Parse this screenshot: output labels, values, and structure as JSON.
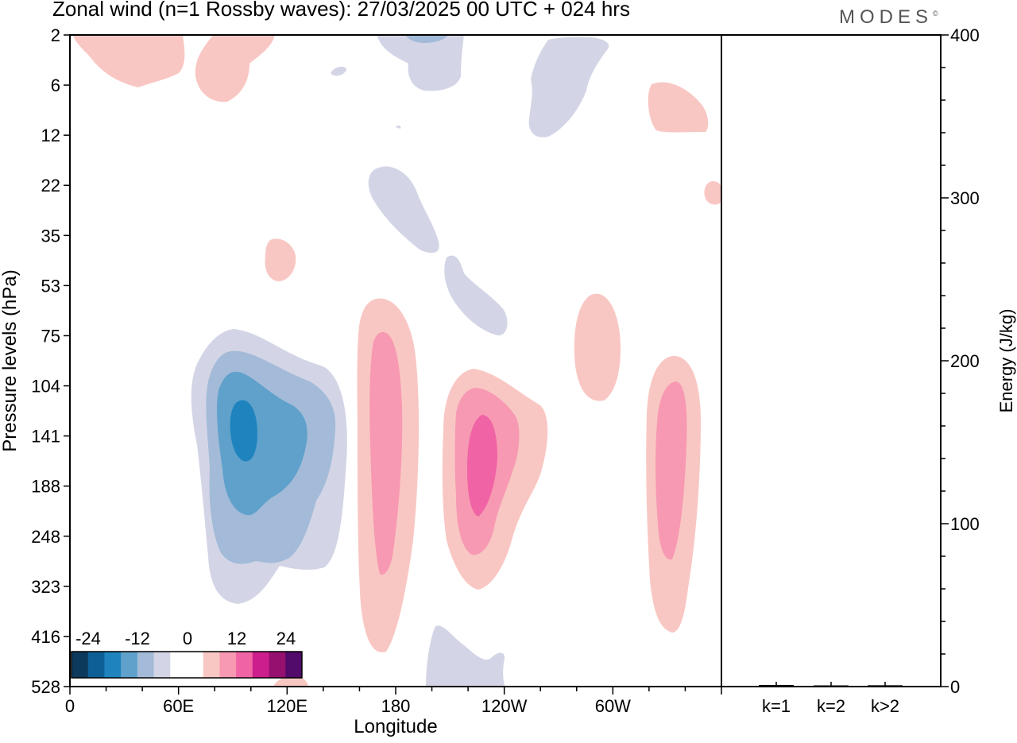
{
  "title": "Zonal wind (n=1 Rossby waves):  27/03/2025  00 UTC  + 024 hrs",
  "brand": "MODES",
  "chart_data": [
    {
      "type": "heatmap",
      "title": "Zonal wind (n=1 Rossby waves):  27/03/2025  00 UTC  + 024 hrs",
      "xlabel": "Longitude",
      "ylabel": "Pressure levels (hPa)",
      "x_ticks": [
        {
          "lon": 0,
          "label": "0"
        },
        {
          "lon": 60,
          "label": "60E"
        },
        {
          "lon": 120,
          "label": "120E"
        },
        {
          "lon": 180,
          "label": "180"
        },
        {
          "lon": 240,
          "label": "120W"
        },
        {
          "lon": 300,
          "label": "60W"
        }
      ],
      "xlim": [
        0,
        360
      ],
      "y_levels": [
        "2",
        "6",
        "12",
        "22",
        "35",
        "53",
        "75",
        "104",
        "141",
        "188",
        "248",
        "323",
        "416",
        "528"
      ],
      "colorbar": {
        "labels": [
          "-24",
          "-12",
          "0",
          "12",
          "24"
        ],
        "colors": [
          "#0d3a5c",
          "#0e5f95",
          "#1f84bd",
          "#5fa1cb",
          "#a3bbd8",
          "#d3d5e6",
          "#ffffff",
          "#ffffff",
          "#f9c7c3",
          "#f799b2",
          "#f063a4",
          "#cc1e8c",
          "#96106f",
          "#520a6b"
        ]
      },
      "features": [
        {
          "sign": "negative",
          "peak": -12,
          "lon": 101,
          "level_index": 8.5
        },
        {
          "sign": "positive",
          "peak": 8,
          "lon": 174,
          "level_index": 8.3
        },
        {
          "sign": "positive",
          "peak": 12,
          "lon": 229,
          "level_index": 8.9
        },
        {
          "sign": "positive",
          "peak": 8,
          "lon": 331,
          "level_index": 9.2
        },
        {
          "sign": "positive",
          "peak": 4,
          "lon": 300,
          "level_index": 7.0
        },
        {
          "sign": "negative",
          "peak": -4,
          "lon": 198,
          "level_index": 13.0
        }
      ]
    },
    {
      "type": "bar",
      "categories": [
        "k=1",
        "k=2",
        "k>2"
      ],
      "values": [
        1,
        0.3,
        0.8
      ],
      "ylabel": "Energy (J/kg)",
      "ylim": [
        0,
        400
      ],
      "y_ticks": [
        "0",
        "100",
        "200",
        "300",
        "400"
      ]
    }
  ]
}
